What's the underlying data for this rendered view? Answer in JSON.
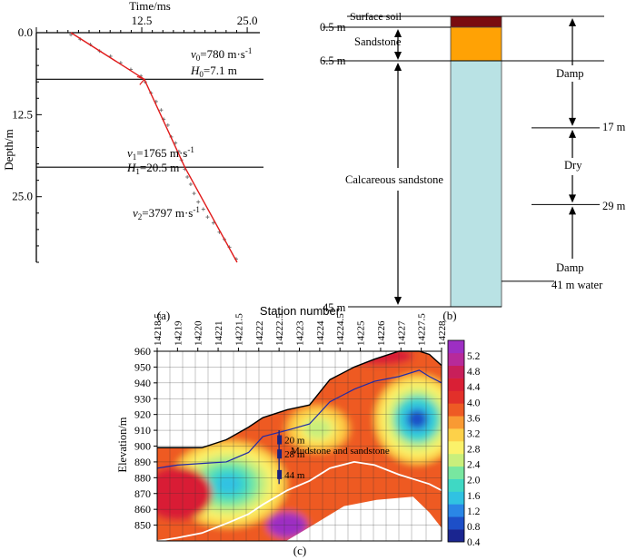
{
  "chart_data": [
    {
      "type": "line",
      "panel": "(a)",
      "title": "",
      "xlabel": "Time/ms",
      "ylabel": "Depth/m",
      "x_ticks": [
        "12.5",
        "25.0"
      ],
      "y_ticks": [
        "0.0",
        "12.5",
        "25.0"
      ],
      "xlim": [
        0,
        26.5
      ],
      "ylim": [
        0,
        35
      ],
      "layers": [
        {
          "velocity_symbol": "v",
          "velocity_sub": "0",
          "velocity_value": "=780 m·s",
          "velocity_exp": "-1",
          "thickness_symbol": "H",
          "thickness_sub": "0",
          "thickness_value": "=7.1 m",
          "boundary_depth": 7.1
        },
        {
          "velocity_symbol": "v",
          "velocity_sub": "1",
          "velocity_value": "=1765 m·s",
          "velocity_exp": "-1",
          "thickness_symbol": "H",
          "thickness_sub": "1",
          "thickness_value": "=20.5 m",
          "boundary_depth": 20.5
        },
        {
          "velocity_symbol": "v",
          "velocity_sub": "2",
          "velocity_value": "=3797 m·s",
          "velocity_exp": "-1"
        }
      ],
      "fit_line": {
        "x": [
          4.1,
          12.8,
          17.6,
          23.8
        ],
        "y": [
          0,
          7.1,
          20.5,
          35
        ]
      },
      "points": {
        "x": [
          4.1,
          5.2,
          6.4,
          7.5,
          8.8,
          10.0,
          11.2,
          12.4,
          12.9,
          13.6,
          14.2,
          14.8,
          15.1,
          15.6,
          16.0,
          16.5,
          16.9,
          17.2,
          17.6,
          17.9,
          18.3,
          18.7,
          19.2,
          19.8,
          20.3,
          21.0,
          21.7,
          22.3,
          22.9,
          23.7
        ],
        "y": [
          0.3,
          1.0,
          1.8,
          2.8,
          3.6,
          4.6,
          5.6,
          6.6,
          7.5,
          9.2,
          10.5,
          11.8,
          13.2,
          14.1,
          15.9,
          16.8,
          18.1,
          19.4,
          20.8,
          22.0,
          23.1,
          24.5,
          25.8,
          26.9,
          28.1,
          29.0,
          30.4,
          31.5,
          32.7,
          34.5
        ]
      }
    },
    {
      "type": "table",
      "panel": "(b)",
      "depth_labels": [
        "0.5 m",
        "6.5 m",
        "45 m"
      ],
      "strata": [
        {
          "name": "Surface soil",
          "top": 0,
          "bottom": 0.5,
          "color": "#7a0c10"
        },
        {
          "name": "Sandstone",
          "top": 0.5,
          "bottom": 6.5,
          "color": "#ffa205"
        },
        {
          "name": "Calcareous sandstone",
          "top": 6.5,
          "bottom": 45,
          "color": "#b9e2e4"
        }
      ],
      "moisture_zones": [
        {
          "label": "Damp",
          "top": 0,
          "bottom": 17
        },
        {
          "label": "Dry",
          "top": 17,
          "bottom": 29
        },
        {
          "label": "Damp",
          "top": 29,
          "bottom": 45
        }
      ],
      "right_labels": [
        "17 m",
        "29 m",
        "41 m water"
      ],
      "water_depth": 41
    },
    {
      "type": "heatmap",
      "panel": "(c)",
      "title": "Station number",
      "ylabel": "Elevation/m",
      "station_labels": [
        "14218.5",
        "14219",
        "14220",
        "14221",
        "14221.5",
        "14222",
        "14222.5",
        "14223",
        "14224",
        "14224.5",
        "14225",
        "14226",
        "14227",
        "14227.5",
        "14228"
      ],
      "elevation_ticks": [
        "960",
        "950",
        "940",
        "930",
        "920",
        "910",
        "900",
        "890",
        "880",
        "870",
        "860",
        "850"
      ],
      "ylim": [
        840,
        960
      ],
      "colorbar_ticks": [
        "5.2",
        "4.8",
        "4.4",
        "4.0",
        "3.6",
        "3.2",
        "2.8",
        "2.4",
        "2.0",
        "1.6",
        "1.2",
        "0.8",
        "0.4"
      ],
      "colorbar_range": [
        0.4,
        5.6
      ],
      "colorbar_colors": [
        "#1a2590",
        "#1d4fc8",
        "#2a86e6",
        "#30c2e2",
        "#3fd8c4",
        "#78e7a0",
        "#c9ef7c",
        "#fbf26a",
        "#fdd149",
        "#f99a33",
        "#ee5a24",
        "#e2302a",
        "#d91f35",
        "#c81f5a",
        "#b72a9a",
        "#9d2fc3"
      ],
      "borehole": {
        "station": "14222.5",
        "depth_markers": [
          "20 m",
          "28 m",
          "44 m"
        ],
        "marker_elevations": [
          904,
          895,
          882
        ]
      },
      "annotation": "Mudstone and sandstone",
      "surface_profile": {
        "x": [
          0.0,
          1.0,
          2.2,
          3.4,
          4.5,
          5.2,
          6.4,
          7.5,
          8.5,
          9.7,
          10.7,
          11.9,
          12.9,
          13.4,
          14.0
        ],
        "elevation": [
          899,
          899,
          899,
          904,
          912,
          918,
          923,
          926,
          942,
          950,
          955,
          960,
          960,
          958,
          951
        ]
      },
      "blue_line": {
        "x": [
          0.0,
          1.0,
          2.2,
          3.4,
          4.5,
          5.2,
          6.4,
          7.5,
          8.5,
          9.7,
          10.7,
          11.9,
          12.9,
          13.4,
          14.0
        ],
        "elevation": [
          886,
          888,
          889,
          890,
          896,
          906,
          910,
          914,
          928,
          936,
          941,
          944,
          948,
          944,
          940
        ]
      },
      "white_line": {
        "x": [
          0.0,
          1.0,
          2.2,
          3.4,
          4.5,
          5.2,
          6.4,
          7.5,
          8.5,
          9.7,
          10.7,
          11.9,
          12.9,
          13.4,
          14.0
        ],
        "elevation": [
          840,
          842,
          845,
          851,
          857,
          863,
          872,
          878,
          886,
          890,
          888,
          882,
          878,
          876,
          872
        ]
      },
      "anomalies": [
        {
          "station_pos": 3.5,
          "elevation": 876,
          "value": 1.4
        },
        {
          "station_pos": 12.8,
          "elevation": 917,
          "value": 1.0
        },
        {
          "station_pos": 7.9,
          "elevation": 911,
          "value": 2.4
        }
      ]
    }
  ],
  "captions": {
    "a": "(a)",
    "b": "(b)",
    "c": "(c)"
  }
}
